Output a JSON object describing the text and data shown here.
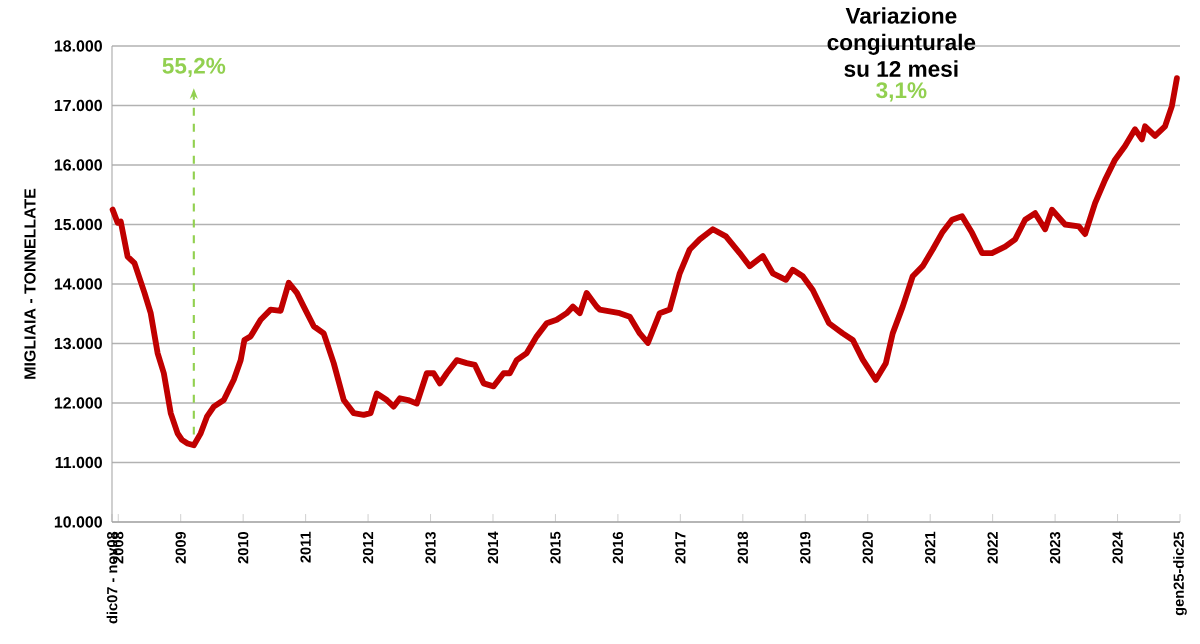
{
  "chart_data": {
    "type": "line",
    "ylabel": "MIGLIAIA  -  TONNELLATE",
    "color": "#c00000",
    "grid": "y",
    "marker": "none",
    "line_style": "solid",
    "xlim": [
      2007.9,
      2025.0
    ],
    "xticks": [
      {
        "value": 2007.9,
        "label": "dic07 - nov08"
      },
      {
        "value": 2008.0,
        "label": "2008"
      },
      2009,
      2010,
      2011,
      2012,
      2013,
      2014,
      2015,
      2016,
      2017,
      2018,
      2019,
      2020,
      2021,
      2022,
      2023,
      2024,
      {
        "value": 2025.0,
        "label": "gen25-dic25"
      }
    ],
    "ylim": [
      10000,
      18000
    ],
    "yticks": [
      {
        "value": 10000,
        "label": "10.000"
      },
      {
        "value": 11000,
        "label": "11.000"
      },
      {
        "value": 12000,
        "label": "12.000"
      },
      {
        "value": 13000,
        "label": "13.000"
      },
      {
        "value": 14000,
        "label": "14.000"
      },
      {
        "value": 15000,
        "label": "15.000"
      },
      {
        "value": 16000,
        "label": "16.000"
      },
      {
        "value": 17000,
        "label": "17.000"
      },
      {
        "value": 18000,
        "label": "18.000"
      }
    ],
    "x": [
      2007.91,
      2007.99,
      2008.04,
      2008.15,
      2008.26,
      2008.42,
      2008.52,
      2008.63,
      2008.73,
      2008.84,
      2008.95,
      2009.02,
      2009.11,
      2009.21,
      2009.32,
      2009.42,
      2009.53,
      2009.69,
      2009.85,
      2009.96,
      2010.02,
      2010.12,
      2010.28,
      2010.44,
      2010.6,
      2010.73,
      2010.86,
      2010.97,
      2011.13,
      2011.29,
      2011.45,
      2011.61,
      2011.77,
      2011.93,
      2012.04,
      2012.14,
      2012.3,
      2012.41,
      2012.51,
      2012.64,
      2012.78,
      2012.94,
      2013.05,
      2013.15,
      2013.26,
      2013.42,
      2013.58,
      2013.71,
      2013.85,
      2014.01,
      2014.17,
      2014.27,
      2014.38,
      2014.54,
      2014.7,
      2014.86,
      2015.02,
      2015.18,
      2015.28,
      2015.39,
      2015.5,
      2015.66,
      2015.71,
      2016.03,
      2016.19,
      2016.35,
      2016.48,
      2016.67,
      2016.83,
      2016.99,
      2017.15,
      2017.31,
      2017.52,
      2017.73,
      2017.95,
      2018.11,
      2018.32,
      2018.48,
      2018.69,
      2018.8,
      2018.96,
      2019.12,
      2019.38,
      2019.6,
      2019.76,
      2019.92,
      2020.13,
      2020.29,
      2020.4,
      2020.56,
      2020.72,
      2020.88,
      2021.04,
      2021.19,
      2021.35,
      2021.51,
      2021.67,
      2021.83,
      2021.99,
      2022.2,
      2022.36,
      2022.52,
      2022.68,
      2022.84,
      2022.95,
      2023.16,
      2023.38,
      2023.48,
      2023.64,
      2023.8,
      2023.96,
      2024.12,
      2024.28,
      2024.39,
      2024.44,
      2024.6,
      2024.76,
      2024.87,
      2024.95
    ],
    "values": [
      15250,
      15030,
      15050,
      14460,
      14350,
      13850,
      13510,
      12840,
      12500,
      11830,
      11490,
      11380,
      11320,
      11290,
      11490,
      11770,
      11940,
      12050,
      12390,
      12720,
      13060,
      13120,
      13400,
      13570,
      13550,
      14020,
      13850,
      13620,
      13290,
      13170,
      12670,
      12050,
      11830,
      11800,
      11830,
      12160,
      12050,
      11940,
      12080,
      12050,
      11990,
      12500,
      12500,
      12330,
      12500,
      12720,
      12670,
      12640,
      12330,
      12280,
      12500,
      12500,
      12720,
      12840,
      13120,
      13340,
      13400,
      13510,
      13620,
      13510,
      13850,
      13620,
      13570,
      13510,
      13450,
      13170,
      13010,
      13510,
      13570,
      14180,
      14580,
      14750,
      14920,
      14800,
      14520,
      14300,
      14470,
      14180,
      14070,
      14240,
      14130,
      13900,
      13340,
      13170,
      13060,
      12730,
      12390,
      12670,
      13170,
      13620,
      14130,
      14300,
      14580,
      14860,
      15080,
      15140,
      14860,
      14520,
      14520,
      14630,
      14750,
      15080,
      15190,
      14920,
      15250,
      15000,
      14970,
      14840,
      15360,
      15750,
      16090,
      16320,
      16600,
      16430,
      16650,
      16490,
      16650,
      16990,
      17460
    ],
    "annotations": [
      {
        "text": "55,2%",
        "x": 2009.21,
        "y": 11290
      },
      "Variazione congiunturale su 12 mesi",
      "3,1%"
    ]
  }
}
